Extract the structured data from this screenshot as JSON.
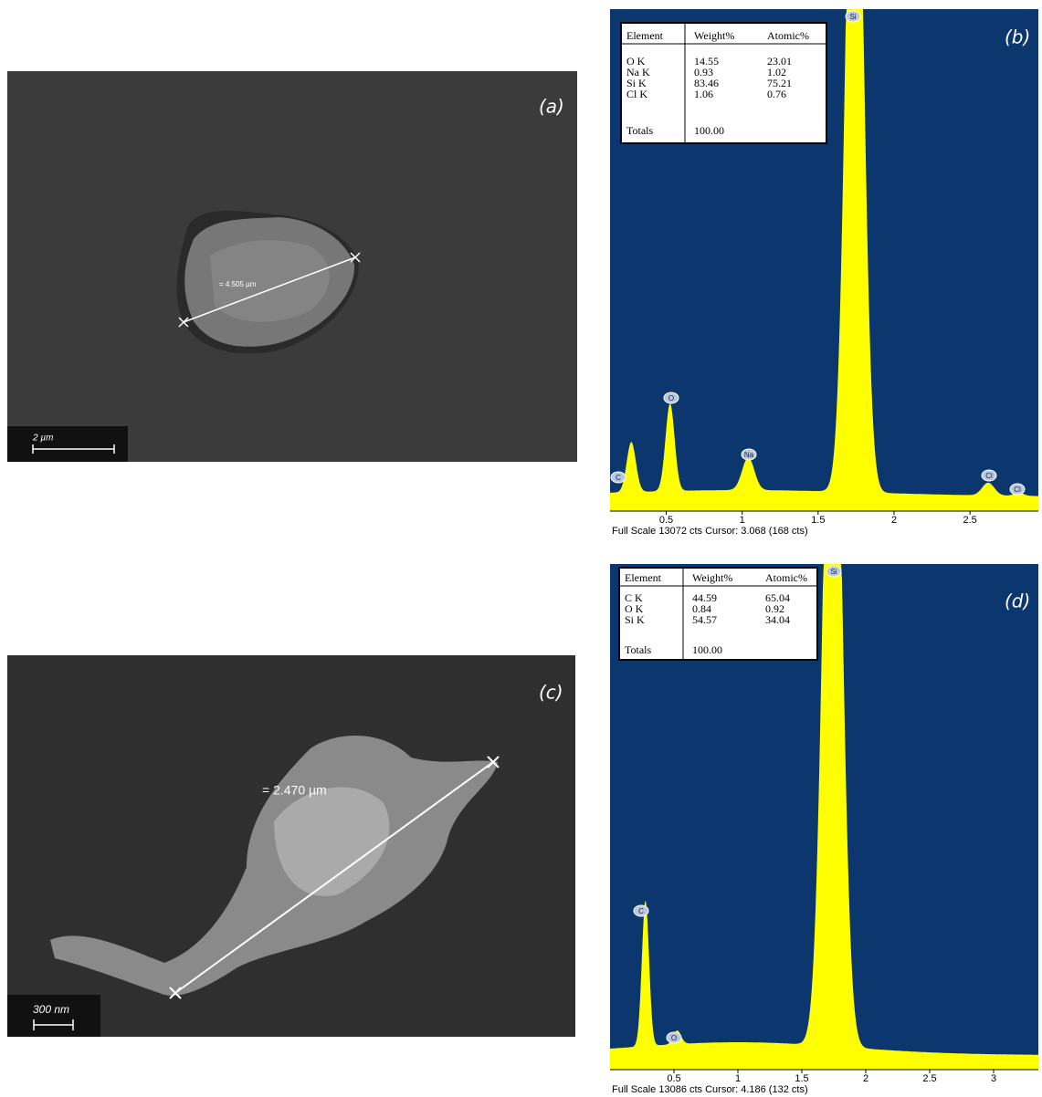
{
  "panels": [
    {
      "label": "(a)",
      "scale_bar": "2 µm",
      "measurement": "= 4.505 µm"
    },
    {
      "label": "(b)",
      "table": {
        "header": [
          "Element",
          "Weight%",
          "Atomic%"
        ],
        "rows": [
          [
            "O K",
            "14.55",
            "23.01"
          ],
          [
            "Na K",
            "0.93",
            "1.02"
          ],
          [
            "Si K",
            "83.46",
            "75.21"
          ],
          [
            "Cl K",
            "1.06",
            "0.76"
          ]
        ],
        "totals": [
          "Totals",
          "100.00"
        ]
      },
      "peak_labels": [
        "C",
        "O",
        "Na",
        "Si",
        "Cl",
        "Cl"
      ],
      "xlim": [
        0.13,
        2.95
      ],
      "xticks": [
        0.5,
        1,
        1.5,
        2,
        2.5
      ],
      "footer": "Full Scale 13072 cts Cursor: 3.068  (168 cts)"
    },
    {
      "label": "(c)",
      "scale_bar": "300 nm",
      "measurement": "= 2.470 µm"
    },
    {
      "label": "(d)",
      "table": {
        "header": [
          "Element",
          "Weight%",
          "Atomic%"
        ],
        "rows": [
          [
            "C K",
            "44.59",
            "65.04"
          ],
          [
            "O K",
            "0.84",
            "0.92"
          ],
          [
            "Si K",
            "54.57",
            "34.04"
          ]
        ],
        "totals": [
          "Totals",
          "100.00"
        ]
      },
      "peak_labels": [
        "C",
        "O",
        "Si"
      ],
      "xlim": [
        0,
        3.35
      ],
      "xticks": [
        0.5,
        1,
        1.5,
        2,
        2.5,
        3
      ],
      "footer": "Full Scale 13086 cts Cursor: 4.186  (132 cts)"
    }
  ]
}
